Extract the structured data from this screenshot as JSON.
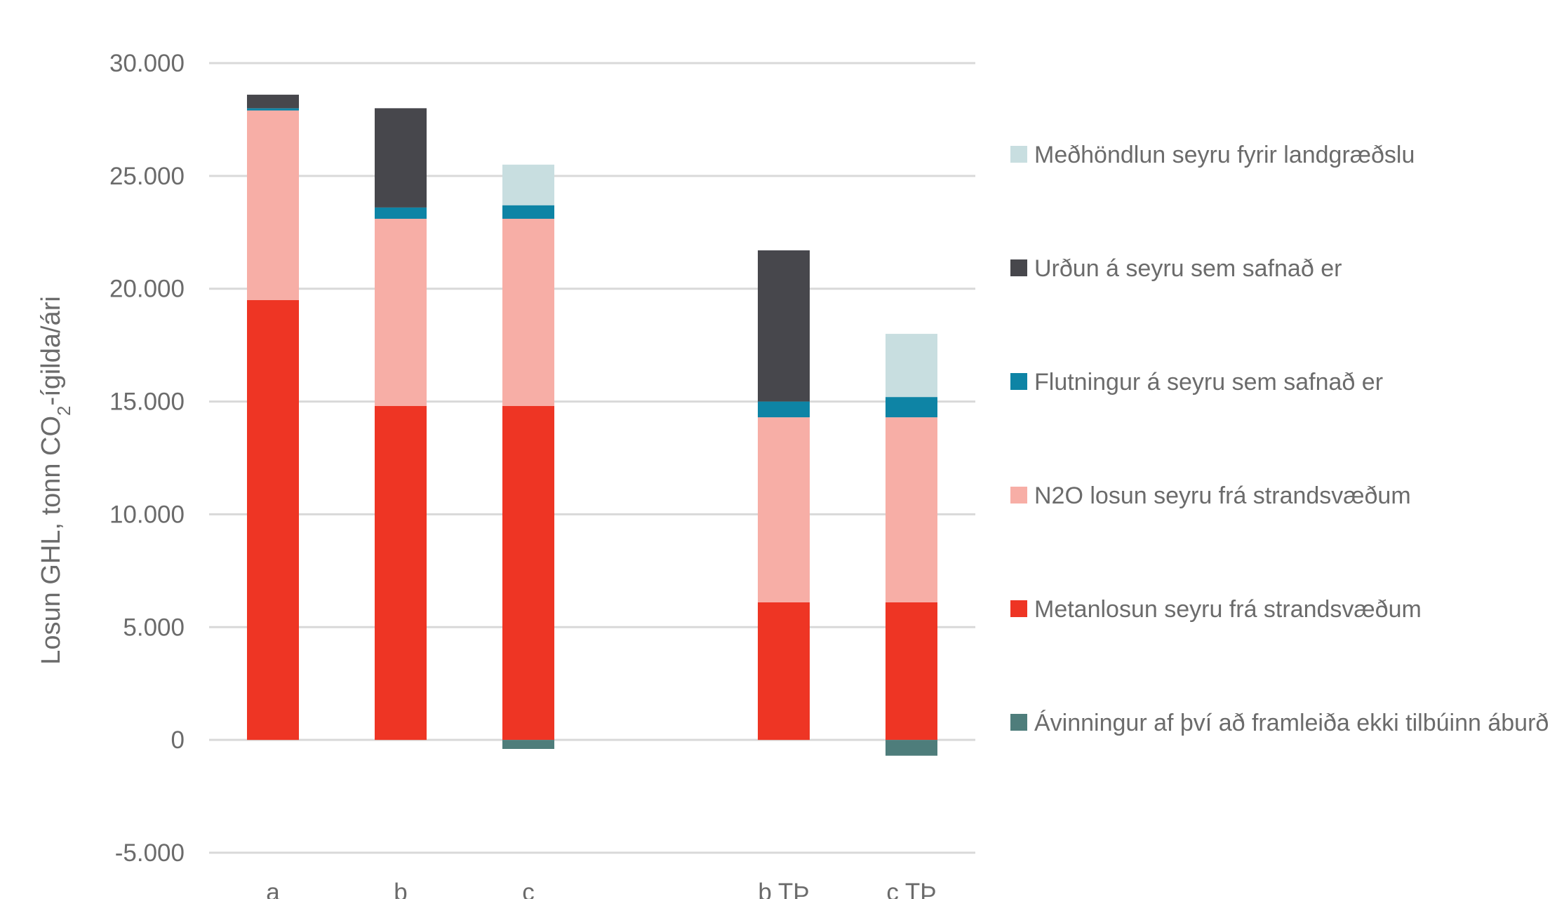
{
  "chart_data": {
    "type": "bar",
    "stacked": true,
    "categories": [
      "a",
      "b",
      "c",
      "",
      "b TÞ",
      "c TÞ"
    ],
    "ylabel_parts": [
      "Losun GHL, tonn CO",
      "2",
      "-ígilda/ári"
    ],
    "ylim": [
      -5000,
      30000
    ],
    "yticks": [
      30000,
      25000,
      20000,
      15000,
      10000,
      5000,
      0,
      -5000
    ],
    "ytick_labels": [
      "30.000",
      "25.000",
      "20.000",
      "15.000",
      "10.000",
      "5.000",
      "0",
      "-5.000"
    ],
    "grid": true,
    "legend_position": "right",
    "series": [
      {
        "name": "Metanlosun seyru frá strandsvæðum",
        "color": "#ee3524",
        "values": [
          19500,
          14800,
          14800,
          null,
          6100,
          6100
        ]
      },
      {
        "name": "N2O losun seyru frá strandsvæðum",
        "color": "#f7aea6",
        "values": [
          8400,
          8300,
          8300,
          null,
          8200,
          8200
        ]
      },
      {
        "name": "Flutningur á seyru sem safnað er",
        "color": "#0e84a5",
        "values": [
          100,
          500,
          600,
          null,
          700,
          900
        ]
      },
      {
        "name": "Urðun á seyru sem safnað er",
        "color": "#47474c",
        "values": [
          600,
          4400,
          0,
          null,
          6700,
          0
        ]
      },
      {
        "name": "Meðhöndlun seyru fyrir landgræðslu",
        "color": "#c8dee0",
        "values": [
          0,
          0,
          1800,
          null,
          0,
          2800
        ]
      },
      {
        "name": "Ávinningur af því að framleiða ekki tilbúinn áburð",
        "color": "#4e7d7b",
        "values": [
          0,
          0,
          -400,
          null,
          0,
          -700
        ]
      }
    ],
    "legend_order": [
      4,
      3,
      2,
      1,
      0,
      5
    ]
  }
}
